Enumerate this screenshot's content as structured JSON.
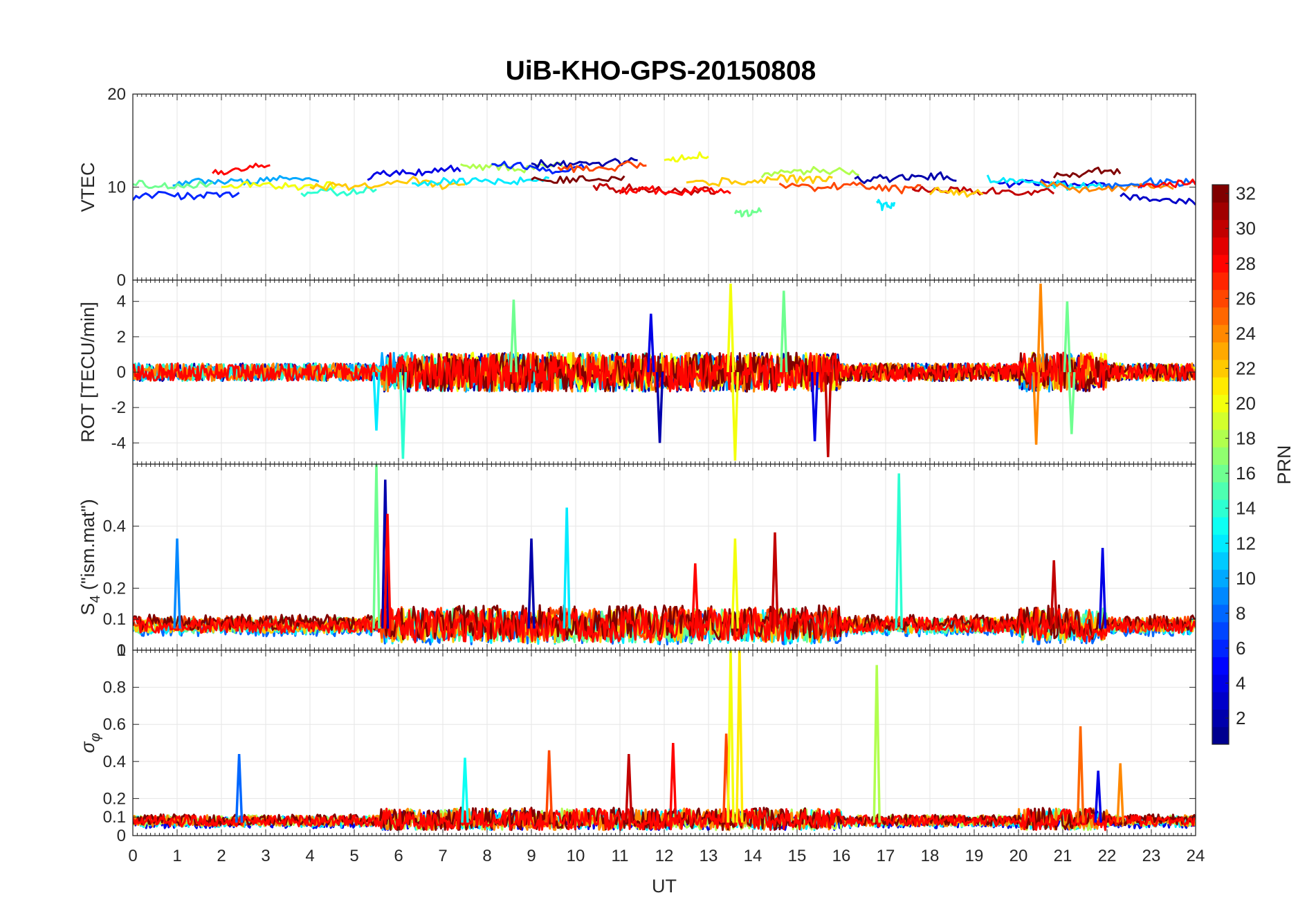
{
  "title": "UiB-KHO-GPS-20150808",
  "chart_data": {
    "type": "line",
    "title": "UiB-KHO-GPS-20150808",
    "xlabel": "UT",
    "xlim": [
      0,
      24
    ],
    "xticks": [
      "0",
      "1",
      "2",
      "3",
      "4",
      "5",
      "6",
      "7",
      "8",
      "9",
      "10",
      "11",
      "12",
      "13",
      "14",
      "15",
      "16",
      "17",
      "18",
      "19",
      "20",
      "21",
      "22",
      "23",
      "24"
    ],
    "grid": true,
    "colorbar": {
      "label": "PRN",
      "range": [
        1,
        32
      ],
      "colormap": "jet",
      "ticks": [
        "2",
        "4",
        "6",
        "8",
        "10",
        "12",
        "14",
        "16",
        "18",
        "20",
        "22",
        "24",
        "26",
        "28",
        "30",
        "32"
      ],
      "colors": [
        "#00008f",
        "#0000ff",
        "#0080ff",
        "#00ffff",
        "#80ff80",
        "#ffff00",
        "#ff8000",
        "#ff0000",
        "#800000"
      ]
    },
    "panels": [
      {
        "ylabel": "VTEC",
        "ylim": [
          0,
          20
        ],
        "yticks": [
          "0",
          "10",
          "20"
        ],
        "baseline": 10,
        "noise": 0.7,
        "points": 330,
        "series": [
          {
            "prn": 6,
            "x": [
              0,
              2.4
            ],
            "offset": -0.9
          },
          {
            "prn": 10,
            "x": [
              0.9,
              4.2
            ],
            "offset": 0.3
          },
          {
            "prn": 16,
            "x": [
              0,
              1.8
            ],
            "offset": 0.6
          },
          {
            "prn": 28,
            "x": [
              1.8,
              3.1
            ],
            "offset": 1.6
          },
          {
            "prn": 20,
            "x": [
              2,
              4.6
            ],
            "offset": 0.2
          },
          {
            "prn": 14,
            "x": [
              3.8,
              5.5
            ],
            "offset": -0.8
          },
          {
            "prn": 4,
            "x": [
              5.3,
              7.4
            ],
            "offset": 1.2
          },
          {
            "prn": 22,
            "x": [
              4,
              7.5
            ],
            "offset": 0
          },
          {
            "prn": 12,
            "x": [
              6.3,
              9.4
            ],
            "offset": 0.2
          },
          {
            "prn": 18,
            "x": [
              7.4,
              9.7
            ],
            "offset": 2.3
          },
          {
            "prn": 6,
            "x": [
              8.1,
              10.2
            ],
            "offset": 2.4
          },
          {
            "prn": 2,
            "x": [
              9,
              11.4
            ],
            "offset": 2.6
          },
          {
            "prn": 32,
            "x": [
              9,
              11.1
            ],
            "offset": 1.1
          },
          {
            "prn": 26,
            "x": [
              9.6,
              11.6
            ],
            "offset": 2.1
          },
          {
            "prn": 30,
            "x": [
              10.4,
              13.2
            ],
            "offset": 0.1
          },
          {
            "prn": 28,
            "x": [
              11,
              13.5
            ],
            "offset": -0.3
          },
          {
            "prn": 20,
            "x": [
              12,
              13
            ],
            "offset": 3.2
          },
          {
            "prn": 22,
            "x": [
              12.5,
              15.8
            ],
            "offset": 0.6
          },
          {
            "prn": 16,
            "x": [
              13.6,
              14.2
            ],
            "offset": -2.6
          },
          {
            "prn": 18,
            "x": [
              14.2,
              16.4
            ],
            "offset": 1.4
          },
          {
            "prn": 26,
            "x": [
              14.6,
              17.8
            ],
            "offset": 0.4
          },
          {
            "prn": 2,
            "x": [
              16.3,
              18.6
            ],
            "offset": 0.9
          },
          {
            "prn": 12,
            "x": [
              16.8,
              17.2
            ],
            "offset": -1.8
          },
          {
            "prn": 30,
            "x": [
              17.6,
              20.8
            ],
            "offset": -0.4
          },
          {
            "prn": 22,
            "x": [
              18,
              19.2
            ],
            "offset": -0.8
          },
          {
            "prn": 4,
            "x": [
              19.5,
              22
            ],
            "offset": 0.4
          },
          {
            "prn": 12,
            "x": [
              19.3,
              21.9
            ],
            "offset": 0.8
          },
          {
            "prn": 24,
            "x": [
              20.5,
              23.5
            ],
            "offset": 0.6
          },
          {
            "prn": 32,
            "x": [
              20.8,
              22.3
            ],
            "offset": 1.1
          },
          {
            "prn": 8,
            "x": [
              21.9,
              24
            ],
            "offset": 0.1
          },
          {
            "prn": 28,
            "x": [
              22.7,
              24
            ],
            "offset": 0.3
          },
          {
            "prn": 3,
            "x": [
              22.3,
              24
            ],
            "offset": -1.2
          }
        ]
      },
      {
        "ylabel": "ROT [TECU/min]",
        "ylim": [
          -5.2,
          5.2
        ],
        "yticks": [
          "-4",
          "-2",
          "0",
          "2",
          "4"
        ],
        "baseline": 0,
        "noise": 0.5,
        "points": 900,
        "series": [
          {
            "prn": 2,
            "x": [
              0,
              24
            ],
            "offset": 0
          },
          {
            "prn": 10,
            "x": [
              0,
              24
            ],
            "offset": 0
          },
          {
            "prn": 14,
            "x": [
              0,
              12
            ],
            "offset": 0
          },
          {
            "prn": 20,
            "x": [
              6,
              24
            ],
            "offset": 0
          },
          {
            "prn": 24,
            "x": [
              0,
              24
            ],
            "offset": 0
          },
          {
            "prn": 32,
            "x": [
              6,
              24
            ],
            "offset": 0
          },
          {
            "prn": 28,
            "x": [
              0,
              24
            ],
            "offset": 0
          }
        ],
        "spikes": [
          {
            "prn": 4,
            "x": 11.7,
            "y": 3.3
          },
          {
            "prn": 2,
            "x": 11.9,
            "y": -4
          },
          {
            "prn": 20,
            "x": 13.5,
            "y": 5.0
          },
          {
            "prn": 20,
            "x": 13.6,
            "y": -5.0
          },
          {
            "prn": 16,
            "x": 14.7,
            "y": 4.6
          },
          {
            "prn": 30,
            "x": 15.7,
            "y": -4.8
          },
          {
            "prn": 4,
            "x": 15.4,
            "y": -3.9
          },
          {
            "prn": 14,
            "x": 6.1,
            "y": -4.9
          },
          {
            "prn": 12,
            "x": 5.5,
            "y": -3.3
          },
          {
            "prn": 16,
            "x": 8.6,
            "y": 4.1
          },
          {
            "prn": 24,
            "x": 20.5,
            "y": 5.0
          },
          {
            "prn": 24,
            "x": 20.4,
            "y": -4.1
          },
          {
            "prn": 16,
            "x": 21.1,
            "y": 4.0
          },
          {
            "prn": 16,
            "x": 21.2,
            "y": -3.5
          }
        ]
      },
      {
        "ylabel": "S4 (\"ism.mat\")",
        "ylim": [
          0,
          0.6
        ],
        "yticks": [
          "0",
          "0.1",
          "0.2",
          "0.4"
        ],
        "baseline": 0.07,
        "noise": 0.025,
        "points": 700,
        "series": [
          {
            "prn": 8,
            "x": [
              0,
              24
            ],
            "offset": 0
          },
          {
            "prn": 12,
            "x": [
              0,
              24
            ],
            "offset": 0.005
          },
          {
            "prn": 16,
            "x": [
              0,
              24
            ],
            "offset": 0.01
          },
          {
            "prn": 22,
            "x": [
              0,
              24
            ],
            "offset": 0.01
          },
          {
            "prn": 26,
            "x": [
              0,
              24
            ],
            "offset": 0.015
          },
          {
            "prn": 32,
            "x": [
              0,
              24
            ],
            "offset": 0.02
          },
          {
            "prn": 28,
            "x": [
              0,
              24
            ],
            "offset": 0.01
          }
        ],
        "spikes": [
          {
            "prn": 9,
            "x": 1.0,
            "y": 0.36
          },
          {
            "prn": 16,
            "x": 5.5,
            "y": 0.6
          },
          {
            "prn": 2,
            "x": 5.7,
            "y": 0.55
          },
          {
            "prn": 28,
            "x": 5.75,
            "y": 0.44
          },
          {
            "prn": 2,
            "x": 9.0,
            "y": 0.36
          },
          {
            "prn": 12,
            "x": 9.8,
            "y": 0.46
          },
          {
            "prn": 28,
            "x": 12.7,
            "y": 0.28
          },
          {
            "prn": 20,
            "x": 13.6,
            "y": 0.36
          },
          {
            "prn": 30,
            "x": 14.5,
            "y": 0.38
          },
          {
            "prn": 14,
            "x": 17.3,
            "y": 0.57
          },
          {
            "prn": 30,
            "x": 20.8,
            "y": 0.29
          },
          {
            "prn": 4,
            "x": 21.9,
            "y": 0.33
          }
        ]
      },
      {
        "ylabel": "σφ",
        "ylim": [
          0,
          1
        ],
        "yticks": [
          "0",
          "0.1",
          "0.2",
          "0.4",
          "0.6",
          "0.8",
          "1"
        ],
        "baseline": 0.07,
        "noise": 0.03,
        "points": 800,
        "series": [
          {
            "prn": 4,
            "x": [
              0,
              24
            ],
            "offset": 0
          },
          {
            "prn": 12,
            "x": [
              0,
              24
            ],
            "offset": 0.005
          },
          {
            "prn": 18,
            "x": [
              0,
              24
            ],
            "offset": 0.01
          },
          {
            "prn": 24,
            "x": [
              0,
              24
            ],
            "offset": 0.01
          },
          {
            "prn": 32,
            "x": [
              0,
              24
            ],
            "offset": 0.015
          },
          {
            "prn": 28,
            "x": [
              0,
              24
            ],
            "offset": 0.01
          }
        ],
        "spikes": [
          {
            "prn": 8,
            "x": 2.4,
            "y": 0.44
          },
          {
            "prn": 13,
            "x": 7.5,
            "y": 0.42
          },
          {
            "prn": 26,
            "x": 9.4,
            "y": 0.46
          },
          {
            "prn": 30,
            "x": 11.2,
            "y": 0.44
          },
          {
            "prn": 28,
            "x": 12.2,
            "y": 0.5
          },
          {
            "prn": 26,
            "x": 13.4,
            "y": 0.55
          },
          {
            "prn": 20,
            "x": 13.5,
            "y": 1.0
          },
          {
            "prn": 21,
            "x": 13.7,
            "y": 1.0
          },
          {
            "prn": 18,
            "x": 16.8,
            "y": 0.92
          },
          {
            "prn": 25,
            "x": 21.4,
            "y": 0.59
          },
          {
            "prn": 4,
            "x": 21.8,
            "y": 0.35
          },
          {
            "prn": 24,
            "x": 22.3,
            "y": 0.39
          }
        ]
      }
    ]
  }
}
